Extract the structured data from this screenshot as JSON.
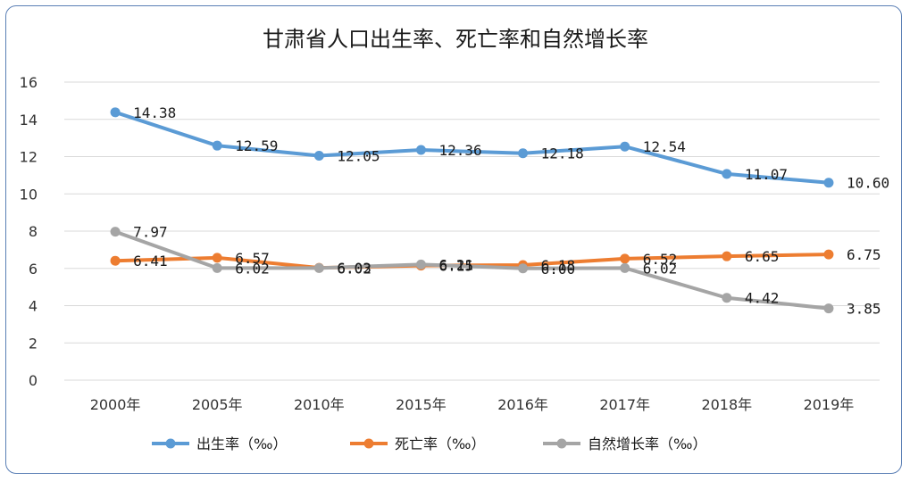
{
  "chart_data": {
    "type": "line",
    "title": "甘肃省人口出生率、死亡率和自然增长率",
    "categories": [
      "2000年",
      "2005年",
      "2010年",
      "2015年",
      "2016年",
      "2017年",
      "2018年",
      "2019年"
    ],
    "ylim": [
      0,
      16
    ],
    "yticks": [
      0,
      2,
      4,
      6,
      8,
      10,
      12,
      14,
      16
    ],
    "grid": true,
    "legend_position": "bottom",
    "series": [
      {
        "name": "出生率（‰）",
        "color": "#5b9bd5",
        "values": [
          14.38,
          12.59,
          12.05,
          12.36,
          12.18,
          12.54,
          11.07,
          10.6
        ],
        "labels": [
          "14.38",
          "12.59",
          "12.05",
          "12.36",
          "12.18",
          "12.54",
          "11.07",
          "10.60"
        ]
      },
      {
        "name": "死亡率（‰）",
        "color": "#ed7d31",
        "values": [
          6.41,
          6.57,
          6.03,
          6.15,
          6.18,
          6.52,
          6.65,
          6.75
        ],
        "labels": [
          "6.41",
          "6.57",
          "6.03",
          "6.15",
          "6.18",
          "6.52",
          "6.65",
          "6.75"
        ]
      },
      {
        "name": "自然增长率（‰）",
        "color": "#a5a5a5",
        "values": [
          7.97,
          6.02,
          6.02,
          6.21,
          6.0,
          6.02,
          4.42,
          3.85
        ],
        "labels": [
          "7.97",
          "6.02",
          "6.02",
          "6.21",
          "6.00",
          "6.02",
          "4.42",
          "3.85"
        ]
      }
    ]
  }
}
